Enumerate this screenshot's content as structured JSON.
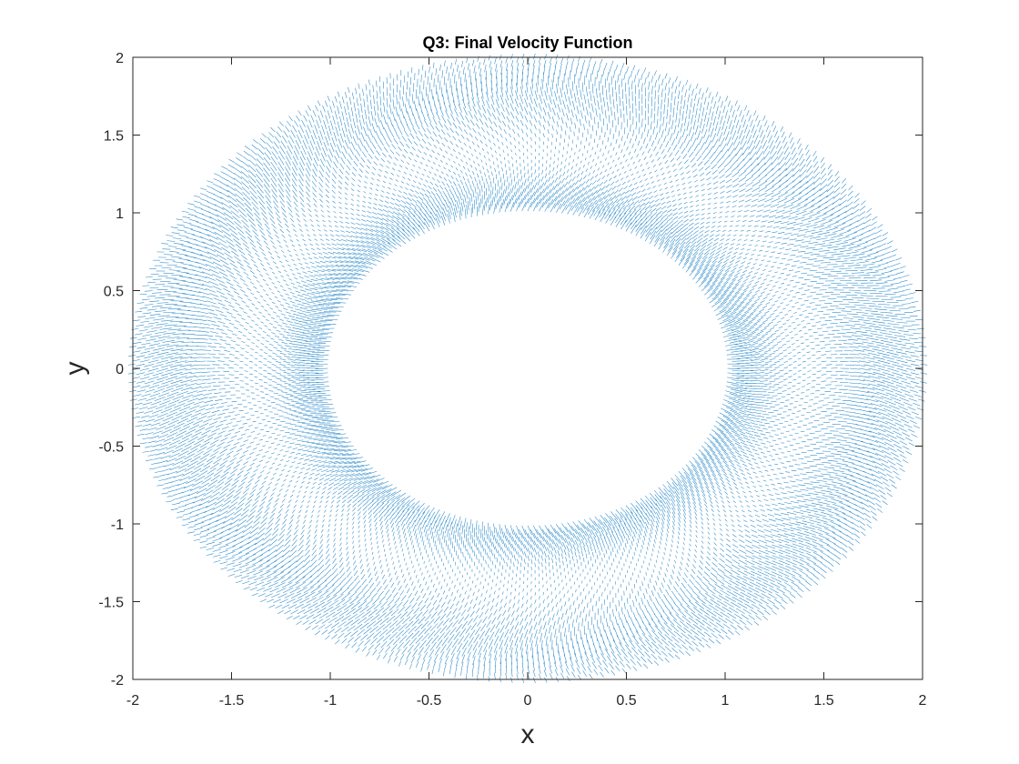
{
  "chart_data": {
    "type": "quiver",
    "title": "Q3: Final Velocity Function",
    "xlabel": "x",
    "ylabel": "y",
    "xlim": [
      -2,
      2
    ],
    "ylim": [
      -2,
      2
    ],
    "xticks": [
      -2,
      -1.5,
      -1,
      -0.5,
      0,
      0.5,
      1,
      1.5,
      2
    ],
    "yticks": [
      -2,
      -1.5,
      -1,
      -0.5,
      0,
      0.5,
      1,
      1.5,
      2
    ],
    "xtick_labels": [
      "-2",
      "-1.5",
      "-1",
      "-0.5",
      "0",
      "0.5",
      "1",
      "1.5",
      "2"
    ],
    "ytick_labels": [
      "-2",
      "-1.5",
      "-1",
      "-0.5",
      "0",
      "0.5",
      "1",
      "1.5",
      "2"
    ],
    "grid": false,
    "legend": false,
    "field_region": {
      "shape": "annulus",
      "inner_radius": 1,
      "outer_radius": 2
    },
    "series": [
      {
        "color": "#0072BD"
      }
    ]
  }
}
